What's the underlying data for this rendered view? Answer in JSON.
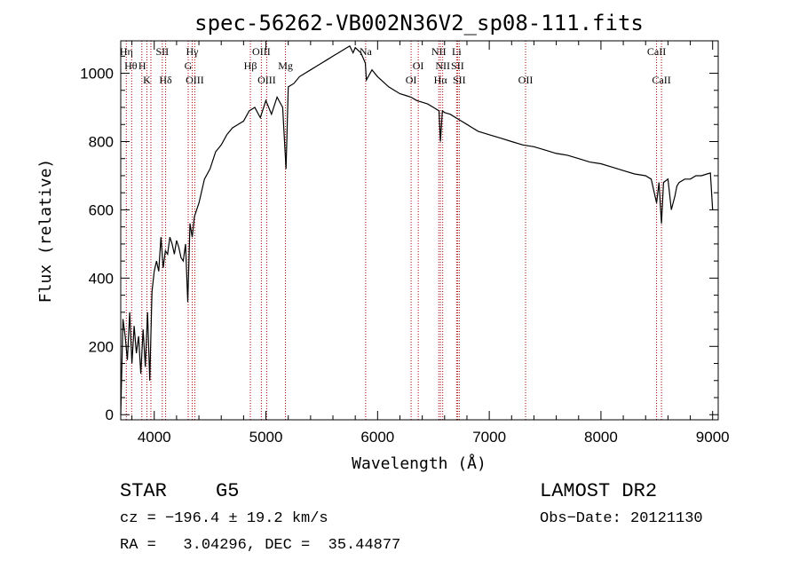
{
  "chart_data": {
    "type": "line",
    "title": "spec-56262-VB002N36V2_sp08-111.fits",
    "xlabel": "Wavelength (Å)",
    "ylabel": "Flux (relative)",
    "xlim": [
      3700,
      9050
    ],
    "ylim": [
      -15,
      1095
    ],
    "xticks": [
      4000,
      5000,
      6000,
      7000,
      8000,
      9000
    ],
    "yticks": [
      0,
      200,
      400,
      600,
      800,
      1000
    ],
    "grid": false,
    "line_color": "#000000",
    "marker_line_color": "#aa0000",
    "series": [
      {
        "x": [
          3700,
          3720,
          3740,
          3760,
          3780,
          3800,
          3820,
          3840,
          3860,
          3880,
          3900,
          3920,
          3940,
          3960,
          3980,
          4000,
          4020,
          4040,
          4060,
          4080,
          4100,
          4120,
          4140,
          4160,
          4180,
          4200,
          4220,
          4240,
          4260,
          4280,
          4300,
          4320,
          4340,
          4360,
          4380,
          4400,
          4450,
          4500,
          4550,
          4600,
          4650,
          4700,
          4750,
          4800,
          4850,
          4900,
          4950,
          5000,
          5050,
          5100,
          5150,
          5180,
          5200,
          5250,
          5300,
          5350,
          5400,
          5450,
          5500,
          5550,
          5600,
          5650,
          5700,
          5750,
          5780,
          5800,
          5850,
          5890,
          5900,
          5950,
          6000,
          6050,
          6100,
          6150,
          6200,
          6250,
          6300,
          6350,
          6400,
          6450,
          6500,
          6550,
          6563,
          6580,
          6600,
          6650,
          6700,
          6750,
          6800,
          6850,
          6900,
          7000,
          7100,
          7200,
          7300,
          7400,
          7500,
          7600,
          7700,
          7800,
          7900,
          8000,
          8100,
          8200,
          8300,
          8400,
          8450,
          8498,
          8520,
          8542,
          8560,
          8600,
          8630,
          8662,
          8680,
          8700,
          8750,
          8800,
          8850,
          8900,
          8950,
          8980,
          9000
        ],
        "y": [
          0,
          280,
          230,
          160,
          300,
          150,
          260,
          180,
          230,
          120,
          250,
          140,
          300,
          100,
          360,
          420,
          450,
          420,
          520,
          430,
          480,
          470,
          520,
          500,
          470,
          510,
          490,
          460,
          450,
          500,
          330,
          560,
          520,
          580,
          600,
          620,
          690,
          720,
          770,
          790,
          820,
          840,
          850,
          860,
          890,
          900,
          870,
          920,
          880,
          930,
          900,
          720,
          960,
          970,
          990,
          1000,
          1010,
          1020,
          1030,
          1040,
          1050,
          1060,
          1070,
          1080,
          1060,
          1075,
          1060,
          1030,
          980,
          1010,
          990,
          975,
          960,
          950,
          940,
          935,
          930,
          920,
          915,
          910,
          900,
          890,
          800,
          890,
          885,
          880,
          870,
          860,
          850,
          840,
          830,
          820,
          810,
          800,
          790,
          785,
          775,
          765,
          760,
          750,
          740,
          735,
          725,
          715,
          705,
          700,
          690,
          620,
          680,
          560,
          680,
          690,
          600,
          640,
          670,
          680,
          690,
          690,
          700,
          700,
          705,
          708,
          600
        ]
      }
    ],
    "lines": [
      {
        "x": 3750,
        "labels": [
          "Hη"
        ]
      },
      {
        "x": 3798,
        "labels": [
          "Hθ"
        ]
      },
      {
        "x": 3889,
        "labels": [
          "H"
        ]
      },
      {
        "x": 3934,
        "labels": [
          "K"
        ]
      },
      {
        "x": 3970,
        "labels": [
          "H"
        ]
      },
      {
        "x": 4072,
        "labels": [
          "SII"
        ]
      },
      {
        "x": 4102,
        "labels": [
          "Hδ"
        ]
      },
      {
        "x": 4304,
        "labels": [
          "G"
        ]
      },
      {
        "x": 4340,
        "labels": [
          "Hγ"
        ]
      },
      {
        "x": 4363,
        "labels": [
          "OIII"
        ]
      },
      {
        "x": 4861,
        "labels": [
          "Hβ"
        ]
      },
      {
        "x": 4959,
        "labels": [
          "OIII"
        ]
      },
      {
        "x": 5007,
        "labels": [
          "OIII"
        ]
      },
      {
        "x": 5175,
        "labels": [
          "Mg"
        ]
      },
      {
        "x": 5893,
        "labels": [
          "Na"
        ]
      },
      {
        "x": 6300,
        "labels": [
          "OI"
        ]
      },
      {
        "x": 6364,
        "labels": [
          "OI"
        ]
      },
      {
        "x": 6548,
        "labels": [
          "NII"
        ]
      },
      {
        "x": 6563,
        "labels": [
          "Hα"
        ]
      },
      {
        "x": 6583,
        "labels": [
          "NII"
        ]
      },
      {
        "x": 6708,
        "labels": [
          "Li"
        ]
      },
      {
        "x": 6716,
        "labels": [
          "SII"
        ]
      },
      {
        "x": 6731,
        "labels": [
          "SII"
        ]
      },
      {
        "x": 7325,
        "labels": [
          "OII"
        ]
      },
      {
        "x": 8498,
        "labels": [
          "CaII"
        ]
      },
      {
        "x": 8542,
        "labels": [
          "CaII"
        ]
      }
    ],
    "line_label_rows": [
      {
        "x": 3750,
        "text": "Hη",
        "row": 0
      },
      {
        "x": 3790,
        "text": "Hθ",
        "row": 1
      },
      {
        "x": 3892,
        "text": "H",
        "row": 1
      },
      {
        "x": 3934,
        "text": "K",
        "row": 2
      },
      {
        "x": 4072,
        "text": "SII",
        "row": 0
      },
      {
        "x": 4102,
        "text": "Hδ",
        "row": 2
      },
      {
        "x": 4340,
        "text": "Hγ",
        "row": 0
      },
      {
        "x": 4304,
        "text": "G",
        "row": 1
      },
      {
        "x": 4363,
        "text": "OIII",
        "row": 2
      },
      {
        "x": 4861,
        "text": "Hβ",
        "row": 1
      },
      {
        "x": 4959,
        "text": "OIII",
        "row": 0
      },
      {
        "x": 5007,
        "text": "OIII",
        "row": 2
      },
      {
        "x": 5175,
        "text": "Mg",
        "row": 1
      },
      {
        "x": 5893,
        "text": "Na",
        "row": 0
      },
      {
        "x": 6364,
        "text": "OI",
        "row": 1
      },
      {
        "x": 6300,
        "text": "OI",
        "row": 2
      },
      {
        "x": 6548,
        "text": "NII",
        "row": 0
      },
      {
        "x": 6708,
        "text": "Li",
        "row": 0
      },
      {
        "x": 6583,
        "text": "NII",
        "row": 1
      },
      {
        "x": 6716,
        "text": "SII",
        "row": 1
      },
      {
        "x": 6563,
        "text": "Hα",
        "row": 2
      },
      {
        "x": 6731,
        "text": "SII",
        "row": 2
      },
      {
        "x": 7325,
        "text": "OII",
        "row": 2
      },
      {
        "x": 8498,
        "text": "CaII",
        "row": 0
      },
      {
        "x": 8542,
        "text": "CaII",
        "row": 2
      }
    ]
  },
  "info": {
    "class": "STAR",
    "subclass": "G5",
    "survey": "LAMOST DR2",
    "cz": "cz = −196.4 ± 19.2 km/s",
    "obs_date": "Obs−Date: 20121130",
    "coords": "RA =   3.04296, DEC =  35.44877"
  }
}
